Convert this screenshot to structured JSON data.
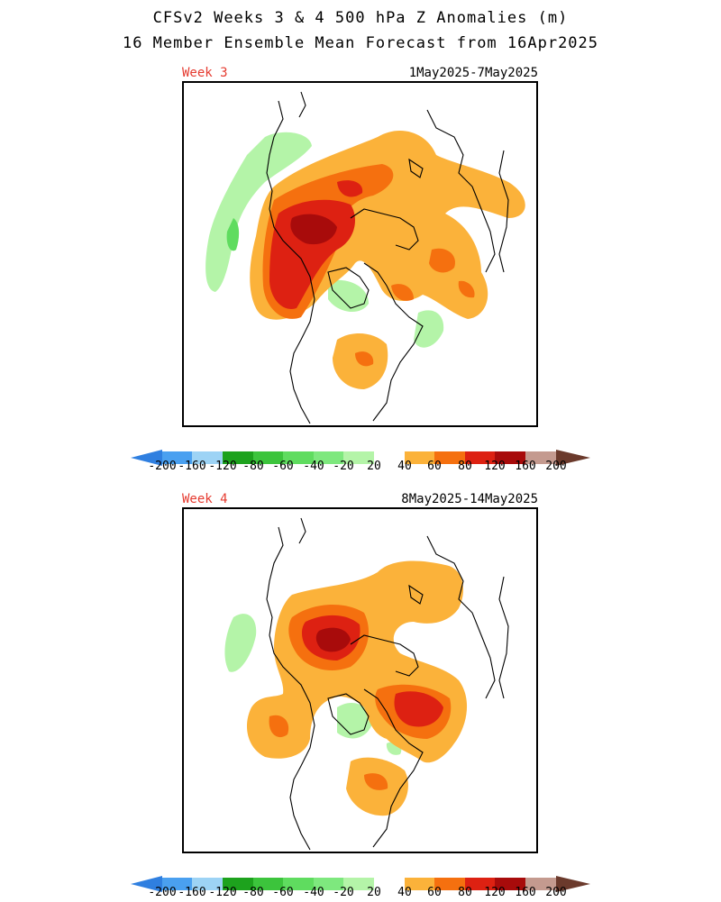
{
  "header": {
    "title_line1": "CFSv2 Weeks 3 & 4 500 hPa Z Anomalies (m)",
    "title_line2": "16 Member Ensemble Mean Forecast from 16Apr2025"
  },
  "panels": [
    {
      "label": "Week 3",
      "dates": "1May2025-7May2025"
    },
    {
      "label": "Week 4",
      "dates": "8May2025-14May2025"
    }
  ],
  "colorbar": {
    "labels": [
      "-200",
      "-160",
      "-120",
      "-80",
      "-60",
      "-40",
      "-20",
      "20",
      "40",
      "60",
      "80",
      "120",
      "160",
      "200"
    ],
    "colors": [
      "#2f7fe0",
      "#4aa0f0",
      "#9dd3f5",
      "#1da21d",
      "#3cc43c",
      "#5fdc5f",
      "#7ee87e",
      "#b4f4a8",
      "#ffffff",
      "#fbb23a",
      "#f5700f",
      "#dd2112",
      "#a80b0b",
      "#c49a8f",
      "#a07467",
      "#6b3a2c"
    ]
  },
  "colors": {
    "week_label": "#e53a2f",
    "coastline": "#000000"
  }
}
